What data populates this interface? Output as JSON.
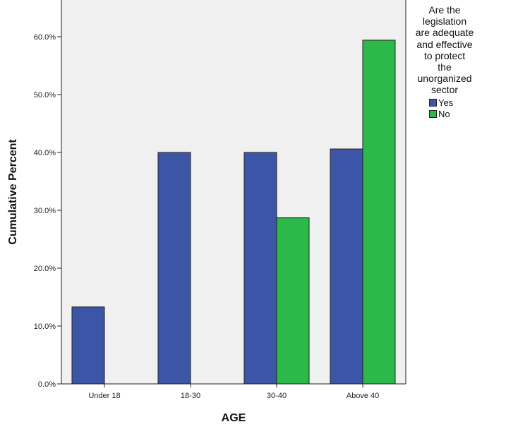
{
  "chart_data": {
    "type": "bar",
    "title": "",
    "xlabel": "AGE",
    "ylabel": "Cumulative Percent",
    "ylim": [
      0,
      66
    ],
    "yticks": [
      "0.0%",
      "10.0%",
      "20.0%",
      "30.0%",
      "40.0%",
      "50.0%",
      "60.0%"
    ],
    "categories": [
      "Under 18",
      "18-30",
      "30-40",
      "Above 40"
    ],
    "legend_title": "Are the\nlegislation\nare adequate\nand effective\nto protect\nthe\nunorganized\nsector",
    "legend_position": "top-right, outside plot",
    "grid": false,
    "plot_background": "#f0f0f0",
    "series": [
      {
        "name": "Yes",
        "color": "#3d55a6",
        "values": [
          13.3,
          40.0,
          40.0,
          40.6
        ]
      },
      {
        "name": "No",
        "color": "#2db84a",
        "values": [
          null,
          null,
          28.7,
          59.4
        ]
      }
    ]
  }
}
